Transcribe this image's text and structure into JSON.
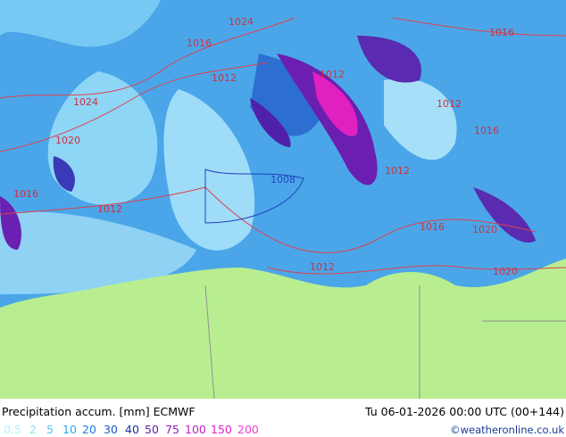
{
  "header": {
    "title": "Precipitation accum. [mm] ECMWF",
    "datetime": "Tu 06-01-2026 00:00 UTC (00+144)"
  },
  "legend": [
    "0.5",
    "2",
    "5",
    "10",
    "20",
    "30",
    "40",
    "50",
    "75",
    "100",
    "150",
    "200"
  ],
  "credit": "©weatheronline.co.uk",
  "isobar_labels": [
    "1024",
    "1016",
    "1012",
    "1024",
    "1020",
    "1016",
    "1012",
    "1008",
    "1012",
    "1016",
    "1020",
    "1020",
    "1012",
    "1012",
    "1016",
    "1016",
    "1012"
  ]
}
